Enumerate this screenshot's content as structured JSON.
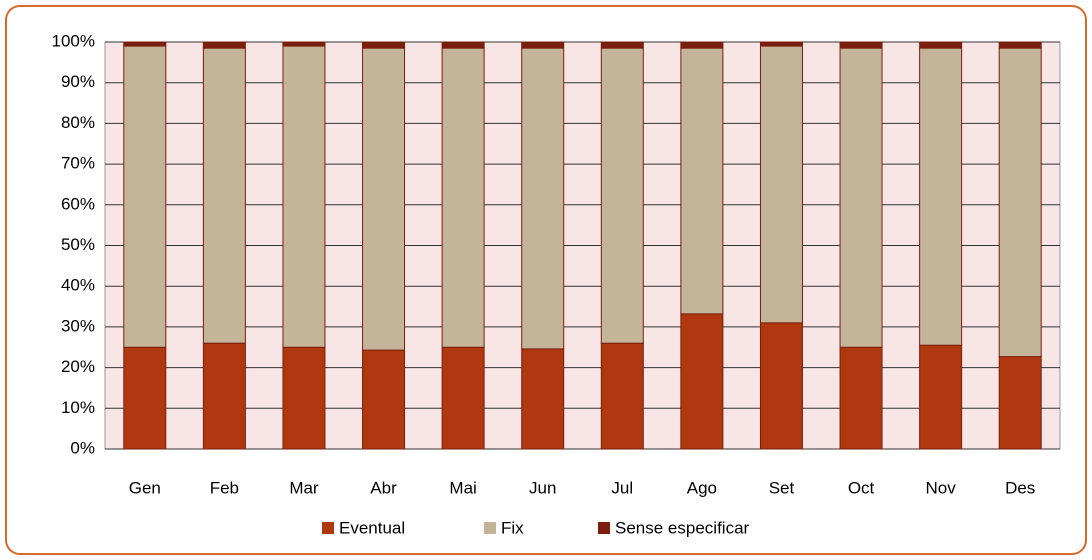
{
  "chart_data": {
    "type": "stacked_bar",
    "categories": [
      "Gen",
      "Feb",
      "Mar",
      "Abr",
      "Mai",
      "Jun",
      "Jul",
      "Ago",
      "Set",
      "Oct",
      "Nov",
      "Des"
    ],
    "series": [
      {
        "name": "Eventual",
        "color": "#b0380f",
        "values": [
          25,
          26,
          25,
          24.3,
          25,
          24.6,
          26,
          33.2,
          31,
          25,
          25.5,
          22.7
        ]
      },
      {
        "name": "Fix",
        "color": "#c4b59a",
        "values": [
          74,
          72.5,
          74,
          74.2,
          73.5,
          73.9,
          72.5,
          65.3,
          68,
          73.5,
          73,
          75.8
        ]
      },
      {
        "name": "Sense especificar",
        "color": "#7a1e0e",
        "values": [
          1,
          1.5,
          1,
          1.5,
          1.5,
          1.5,
          1.5,
          1.5,
          1,
          1.5,
          1.5,
          1.5
        ]
      }
    ],
    "ylim": [
      0,
      100
    ],
    "yticks": [
      {
        "value": 0,
        "label": "0%"
      },
      {
        "value": 10,
        "label": "10%"
      },
      {
        "value": 20,
        "label": "20%"
      },
      {
        "value": 30,
        "label": "30%"
      },
      {
        "value": 40,
        "label": "40%"
      },
      {
        "value": 50,
        "label": "50%"
      },
      {
        "value": 60,
        "label": "60%"
      },
      {
        "value": 70,
        "label": "70%"
      },
      {
        "value": 80,
        "label": "80%"
      },
      {
        "value": 90,
        "label": "90%"
      },
      {
        "value": 100,
        "label": "100%"
      }
    ],
    "grid": true,
    "legend": "bottom"
  }
}
